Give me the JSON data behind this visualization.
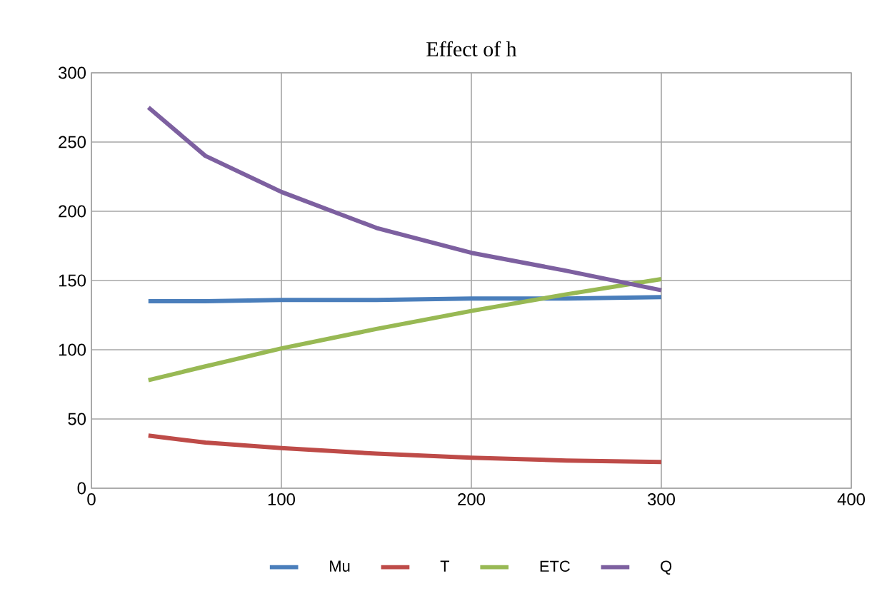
{
  "chart_data": {
    "type": "line",
    "title": "Effect of  h",
    "x": [
      30,
      60,
      100,
      150,
      200,
      250,
      300
    ],
    "series": [
      {
        "name": "Mu",
        "color": "#4a7ebb",
        "values": [
          135,
          135,
          136,
          136,
          137,
          137,
          138
        ]
      },
      {
        "name": "T",
        "color": "#be4b48",
        "values": [
          38,
          33,
          29,
          25,
          22,
          20,
          19
        ]
      },
      {
        "name": "ETC",
        "color": "#98b954",
        "values": [
          78,
          88,
          101,
          115,
          128,
          140,
          151
        ]
      },
      {
        "name": "Q",
        "color": "#7d60a0",
        "values": [
          275,
          240,
          214,
          188,
          170,
          157,
          143
        ]
      }
    ],
    "xlim": [
      0,
      400
    ],
    "xticks": [
      0,
      100,
      200,
      300,
      400
    ],
    "ylim": [
      0,
      300
    ],
    "yticks": [
      0,
      50,
      100,
      150,
      200,
      250,
      300
    ],
    "grid": true,
    "legend": "bottom",
    "marker": "none",
    "line_style": "solid"
  }
}
